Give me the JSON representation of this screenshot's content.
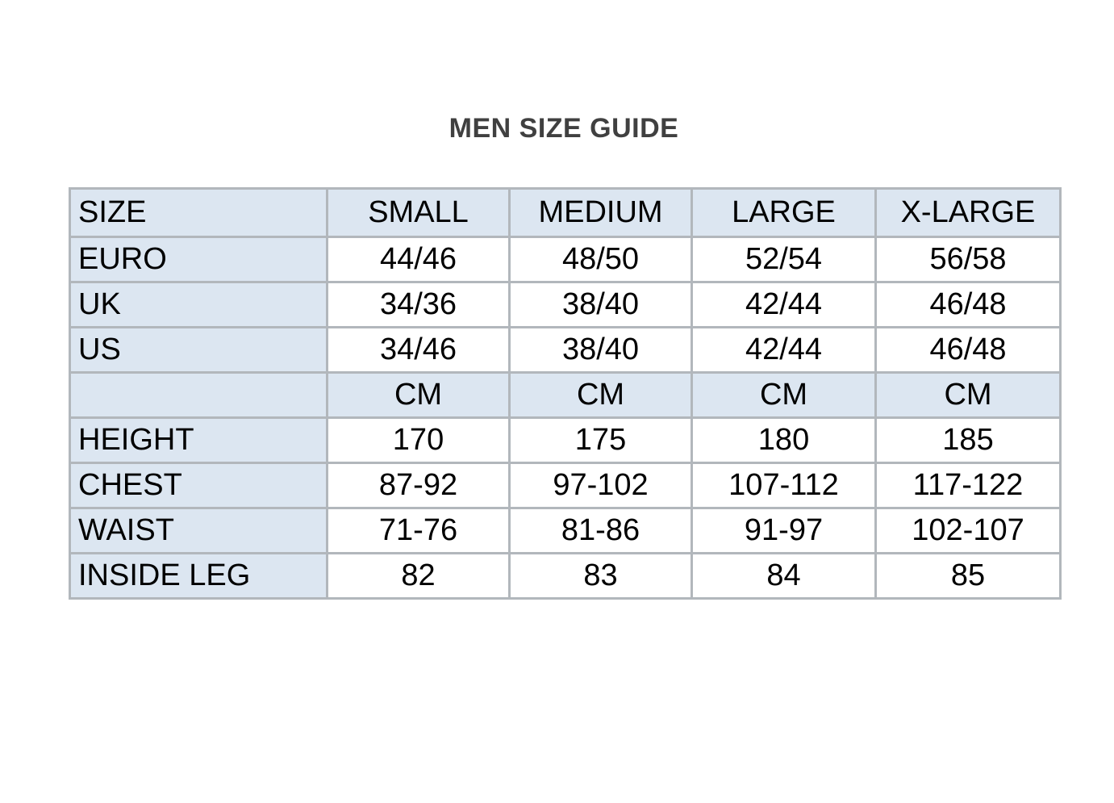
{
  "title": "MEN SIZE GUIDE",
  "colors": {
    "header_bg": "#dce6f1",
    "border": "#b2b7bc",
    "title_color": "#404040",
    "cell_text": "#000000"
  },
  "table": {
    "columns": [
      "SIZE",
      "SMALL",
      "MEDIUM",
      "LARGE",
      "X-LARGE"
    ],
    "rows": [
      {
        "label": "EURO",
        "type": "data",
        "values": [
          "44/46",
          "48/50",
          "52/54",
          "56/58"
        ]
      },
      {
        "label": "UK",
        "type": "data",
        "values": [
          "34/36",
          "38/40",
          "42/44",
          "46/48"
        ]
      },
      {
        "label": "US",
        "type": "data",
        "values": [
          "34/46",
          "38/40",
          "42/44",
          "46/48"
        ]
      },
      {
        "label": "",
        "type": "unit",
        "values": [
          "CM",
          "CM",
          "CM",
          "CM"
        ]
      },
      {
        "label": "HEIGHT",
        "type": "data",
        "values": [
          "170",
          "175",
          "180",
          "185"
        ]
      },
      {
        "label": "CHEST",
        "type": "data",
        "values": [
          "87-92",
          "97-102",
          "107-112",
          "117-122"
        ]
      },
      {
        "label": "WAIST",
        "type": "data",
        "values": [
          "71-76",
          "81-86",
          "91-97",
          "102-107"
        ]
      },
      {
        "label": "INSIDE LEG",
        "type": "data",
        "values": [
          "82",
          "83",
          "84",
          "85"
        ]
      }
    ]
  }
}
